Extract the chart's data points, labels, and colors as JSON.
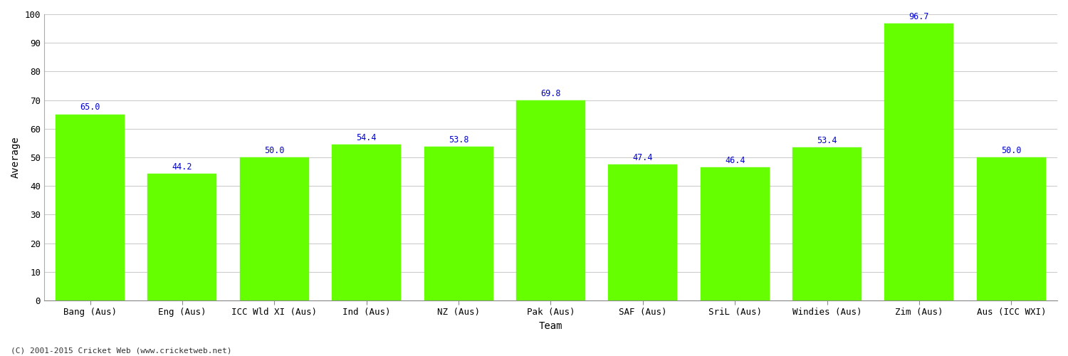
{
  "xlabel": "Team",
  "ylabel": "Average",
  "categories": [
    "Bang (Aus)",
    "Eng (Aus)",
    "ICC Wld XI (Aus)",
    "Ind (Aus)",
    "NZ (Aus)",
    "Pak (Aus)",
    "SAF (Aus)",
    "SriL (Aus)",
    "Windies (Aus)",
    "Zim (Aus)",
    "Aus (ICC WXI)"
  ],
  "values": [
    65.0,
    44.2,
    50.0,
    54.4,
    53.8,
    69.8,
    47.4,
    46.4,
    53.4,
    96.7,
    50.0
  ],
  "bar_color": "#66ff00",
  "bar_edge_color": "#66ff00",
  "label_color": "#0000cc",
  "label_fontsize": 8.5,
  "background_color": "#ffffff",
  "grid_color": "#cccccc",
  "ylim": [
    0,
    100
  ],
  "yticks": [
    0,
    10,
    20,
    30,
    40,
    50,
    60,
    70,
    80,
    90,
    100
  ],
  "tick_label_fontsize": 9,
  "axis_label_fontsize": 10,
  "footnote": "(C) 2001-2015 Cricket Web (www.cricketweb.net)"
}
